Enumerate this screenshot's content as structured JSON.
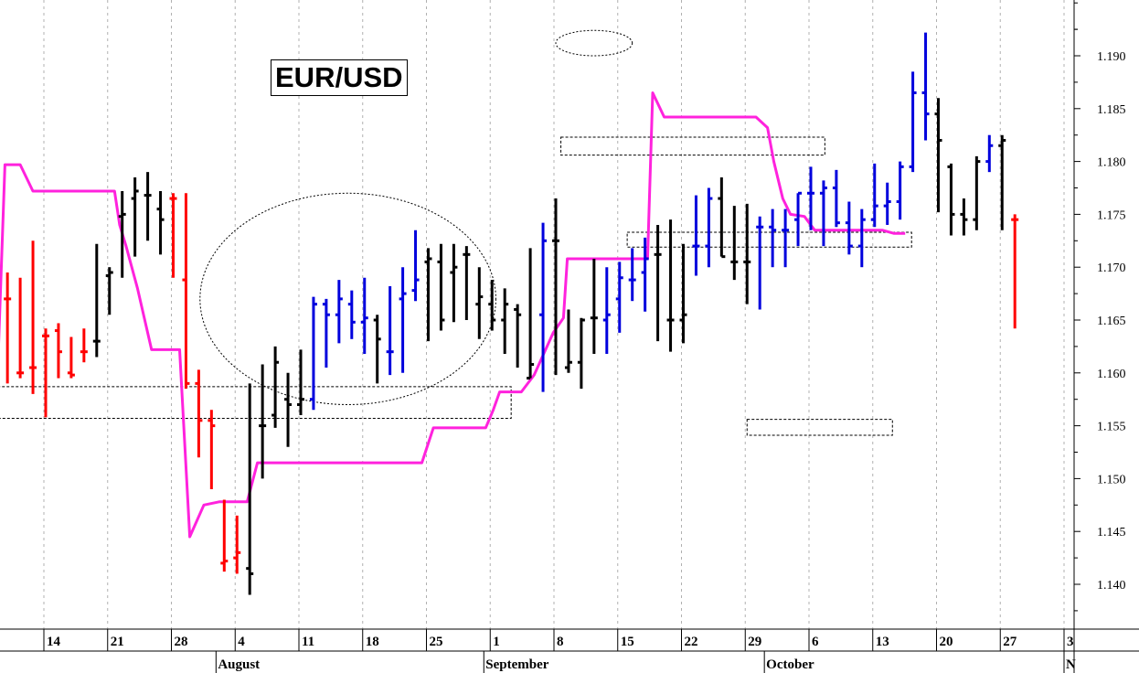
{
  "chart_data": {
    "type": "ohlc",
    "title": "EUR/USD",
    "ylim": [
      1.1345,
      1.1995
    ],
    "y_ticks": [
      "1.140",
      "1.145",
      "1.150",
      "1.155",
      "1.160",
      "1.165",
      "1.170",
      "1.175",
      "1.180",
      "1.185",
      "1.190"
    ],
    "y_tick_values": [
      1.14,
      1.145,
      1.15,
      1.155,
      1.16,
      1.165,
      1.17,
      1.175,
      1.18,
      1.185,
      1.19
    ],
    "x_day_labels": [
      "14",
      "21",
      "28",
      "4",
      "11",
      "18",
      "25",
      "1",
      "8",
      "15",
      "22",
      "29",
      "6",
      "13",
      "20",
      "27",
      "3"
    ],
    "x_day_index": [
      8,
      13,
      18,
      23,
      28,
      33,
      38,
      43,
      48,
      53,
      58,
      63,
      68,
      73,
      78,
      83,
      88
    ],
    "month_labels": [
      {
        "label": "August",
        "index": 21.5
      },
      {
        "label": "September",
        "index": 42.5
      },
      {
        "label": "October",
        "index": 64.5
      },
      {
        "label": "N",
        "index": 88
      }
    ],
    "grid": true,
    "bar_colors": {
      "black": "#000000",
      "red": "#ff0000",
      "blue": "#0000dd"
    },
    "bars": [
      {
        "i": 0,
        "o": 1.1725,
        "h": 1.1735,
        "l": 1.169,
        "c": 1.1725,
        "color": "black"
      },
      {
        "i": 1,
        "o": 1.1722,
        "h": 1.173,
        "l": 1.1675,
        "c": 1.1695,
        "color": "black"
      },
      {
        "i": 2,
        "o": 1.1688,
        "h": 1.1752,
        "l": 1.167,
        "c": 1.17,
        "color": "black"
      },
      {
        "i": 3,
        "o": 1.1695,
        "h": 1.1718,
        "l": 1.167,
        "c": 1.1695,
        "color": "black"
      },
      {
        "i": 4,
        "o": 1.1688,
        "h": 1.1715,
        "l": 1.1652,
        "c": 1.1688,
        "color": "black"
      },
      {
        "i": 5,
        "o": 1.167,
        "h": 1.1695,
        "l": 1.159,
        "c": 1.167,
        "color": "red"
      },
      {
        "i": 6,
        "o": 1.16,
        "h": 1.169,
        "l": 1.1595,
        "c": 1.16,
        "color": "red"
      },
      {
        "i": 7,
        "o": 1.1605,
        "h": 1.1725,
        "l": 1.158,
        "c": 1.1605,
        "color": "red"
      },
      {
        "i": 8,
        "o": 1.1635,
        "h": 1.1642,
        "l": 1.1558,
        "c": 1.1635,
        "color": "red"
      },
      {
        "i": 9,
        "o": 1.164,
        "h": 1.1647,
        "l": 1.1595,
        "c": 1.162,
        "color": "red"
      },
      {
        "i": 10,
        "o": 1.16,
        "h": 1.1634,
        "l": 1.1595,
        "c": 1.1598,
        "color": "red"
      },
      {
        "i": 11,
        "o": 1.162,
        "h": 1.1642,
        "l": 1.161,
        "c": 1.162,
        "color": "red"
      },
      {
        "i": 12,
        "o": 1.163,
        "h": 1.1722,
        "l": 1.1615,
        "c": 1.163,
        "color": "black"
      },
      {
        "i": 13,
        "o": 1.1692,
        "h": 1.17,
        "l": 1.1655,
        "c": 1.1695,
        "color": "black"
      },
      {
        "i": 14,
        "o": 1.1748,
        "h": 1.1772,
        "l": 1.169,
        "c": 1.175,
        "color": "black"
      },
      {
        "i": 15,
        "o": 1.1765,
        "h": 1.1785,
        "l": 1.171,
        "c": 1.1772,
        "color": "black"
      },
      {
        "i": 16,
        "o": 1.1768,
        "h": 1.179,
        "l": 1.1725,
        "c": 1.1768,
        "color": "black"
      },
      {
        "i": 17,
        "o": 1.1755,
        "h": 1.1772,
        "l": 1.1712,
        "c": 1.1745,
        "color": "black"
      },
      {
        "i": 18,
        "o": 1.1765,
        "h": 1.177,
        "l": 1.169,
        "c": 1.1765,
        "color": "red"
      },
      {
        "i": 19,
        "o": 1.1688,
        "h": 1.177,
        "l": 1.1585,
        "c": 1.159,
        "color": "red"
      },
      {
        "i": 20,
        "o": 1.159,
        "h": 1.1603,
        "l": 1.152,
        "c": 1.1555,
        "color": "red"
      },
      {
        "i": 21,
        "o": 1.1555,
        "h": 1.1565,
        "l": 1.149,
        "c": 1.155,
        "color": "red"
      },
      {
        "i": 22,
        "o": 1.142,
        "h": 1.148,
        "l": 1.1412,
        "c": 1.1422,
        "color": "red"
      },
      {
        "i": 23,
        "o": 1.1425,
        "h": 1.1465,
        "l": 1.141,
        "c": 1.143,
        "color": "red"
      },
      {
        "i": 24,
        "o": 1.1415,
        "h": 1.159,
        "l": 1.139,
        "c": 1.141,
        "color": "black"
      },
      {
        "i": 25,
        "o": 1.155,
        "h": 1.1608,
        "l": 1.15,
        "c": 1.155,
        "color": "black"
      },
      {
        "i": 26,
        "o": 1.156,
        "h": 1.1625,
        "l": 1.1548,
        "c": 1.161,
        "color": "black"
      },
      {
        "i": 27,
        "o": 1.1575,
        "h": 1.16,
        "l": 1.153,
        "c": 1.157,
        "color": "black"
      },
      {
        "i": 28,
        "o": 1.157,
        "h": 1.1622,
        "l": 1.156,
        "c": 1.1575,
        "color": "black"
      },
      {
        "i": 29,
        "o": 1.1575,
        "h": 1.1672,
        "l": 1.1565,
        "c": 1.1665,
        "color": "blue"
      },
      {
        "i": 30,
        "o": 1.1665,
        "h": 1.167,
        "l": 1.1605,
        "c": 1.1655,
        "color": "blue"
      },
      {
        "i": 31,
        "o": 1.1655,
        "h": 1.1688,
        "l": 1.1628,
        "c": 1.167,
        "color": "blue"
      },
      {
        "i": 32,
        "o": 1.1665,
        "h": 1.1678,
        "l": 1.1632,
        "c": 1.1648,
        "color": "blue"
      },
      {
        "i": 33,
        "o": 1.1648,
        "h": 1.169,
        "l": 1.1618,
        "c": 1.1652,
        "color": "blue"
      },
      {
        "i": 34,
        "o": 1.165,
        "h": 1.1655,
        "l": 1.159,
        "c": 1.1632,
        "color": "black"
      },
      {
        "i": 35,
        "o": 1.162,
        "h": 1.1682,
        "l": 1.1598,
        "c": 1.162,
        "color": "blue"
      },
      {
        "i": 36,
        "o": 1.167,
        "h": 1.17,
        "l": 1.16,
        "c": 1.1675,
        "color": "blue"
      },
      {
        "i": 37,
        "o": 1.1678,
        "h": 1.1735,
        "l": 1.1668,
        "c": 1.1688,
        "color": "blue"
      },
      {
        "i": 38,
        "o": 1.1705,
        "h": 1.1718,
        "l": 1.163,
        "c": 1.1708,
        "color": "black"
      },
      {
        "i": 39,
        "o": 1.1705,
        "h": 1.1722,
        "l": 1.164,
        "c": 1.165,
        "color": "black"
      },
      {
        "i": 40,
        "o": 1.1695,
        "h": 1.1722,
        "l": 1.1648,
        "c": 1.17,
        "color": "black"
      },
      {
        "i": 41,
        "o": 1.1712,
        "h": 1.172,
        "l": 1.165,
        "c": 1.1712,
        "color": "black"
      },
      {
        "i": 42,
        "o": 1.1665,
        "h": 1.17,
        "l": 1.1632,
        "c": 1.1672,
        "color": "black"
      },
      {
        "i": 43,
        "o": 1.1665,
        "h": 1.1688,
        "l": 1.164,
        "c": 1.165,
        "color": "black"
      },
      {
        "i": 44,
        "o": 1.165,
        "h": 1.168,
        "l": 1.1618,
        "c": 1.1665,
        "color": "black"
      },
      {
        "i": 45,
        "o": 1.166,
        "h": 1.1665,
        "l": 1.1605,
        "c": 1.1655,
        "color": "black"
      },
      {
        "i": 46,
        "o": 1.1595,
        "h": 1.1718,
        "l": 1.1595,
        "c": 1.1608,
        "color": "black"
      },
      {
        "i": 47,
        "o": 1.1655,
        "h": 1.1742,
        "l": 1.1582,
        "c": 1.1725,
        "color": "blue"
      },
      {
        "i": 48,
        "o": 1.1725,
        "h": 1.1765,
        "l": 1.1598,
        "c": 1.1725,
        "color": "black"
      },
      {
        "i": 49,
        "o": 1.1605,
        "h": 1.166,
        "l": 1.16,
        "c": 1.161,
        "color": "black"
      },
      {
        "i": 50,
        "o": 1.161,
        "h": 1.1652,
        "l": 1.1585,
        "c": 1.165,
        "color": "black"
      },
      {
        "i": 51,
        "o": 1.1652,
        "h": 1.1708,
        "l": 1.1618,
        "c": 1.1652,
        "color": "black"
      },
      {
        "i": 52,
        "o": 1.165,
        "h": 1.17,
        "l": 1.1618,
        "c": 1.1655,
        "color": "blue"
      },
      {
        "i": 53,
        "o": 1.167,
        "h": 1.1705,
        "l": 1.1638,
        "c": 1.169,
        "color": "blue"
      },
      {
        "i": 54,
        "o": 1.1688,
        "h": 1.1718,
        "l": 1.1668,
        "c": 1.1688,
        "color": "blue"
      },
      {
        "i": 55,
        "o": 1.1695,
        "h": 1.1728,
        "l": 1.1658,
        "c": 1.1708,
        "color": "blue"
      },
      {
        "i": 56,
        "o": 1.1712,
        "h": 1.174,
        "l": 1.163,
        "c": 1.1712,
        "color": "black"
      },
      {
        "i": 57,
        "o": 1.165,
        "h": 1.1745,
        "l": 1.162,
        "c": 1.165,
        "color": "black"
      },
      {
        "i": 58,
        "o": 1.165,
        "h": 1.1722,
        "l": 1.1628,
        "c": 1.1655,
        "color": "black"
      },
      {
        "i": 59,
        "o": 1.172,
        "h": 1.1768,
        "l": 1.1692,
        "c": 1.172,
        "color": "blue"
      },
      {
        "i": 60,
        "o": 1.172,
        "h": 1.1775,
        "l": 1.17,
        "c": 1.1765,
        "color": "blue"
      },
      {
        "i": 61,
        "o": 1.1765,
        "h": 1.1785,
        "l": 1.171,
        "c": 1.171,
        "color": "black"
      },
      {
        "i": 62,
        "o": 1.1705,
        "h": 1.1758,
        "l": 1.1688,
        "c": 1.1705,
        "color": "black"
      },
      {
        "i": 63,
        "o": 1.1705,
        "h": 1.176,
        "l": 1.1665,
        "c": 1.1705,
        "color": "black"
      },
      {
        "i": 64,
        "o": 1.1738,
        "h": 1.1748,
        "l": 1.166,
        "c": 1.1738,
        "color": "blue"
      },
      {
        "i": 65,
        "o": 1.1738,
        "h": 1.1755,
        "l": 1.17,
        "c": 1.1735,
        "color": "blue"
      },
      {
        "i": 66,
        "o": 1.1735,
        "h": 1.1755,
        "l": 1.17,
        "c": 1.1735,
        "color": "blue"
      },
      {
        "i": 67,
        "o": 1.1745,
        "h": 1.177,
        "l": 1.172,
        "c": 1.177,
        "color": "blue"
      },
      {
        "i": 68,
        "o": 1.177,
        "h": 1.1795,
        "l": 1.1735,
        "c": 1.177,
        "color": "blue"
      },
      {
        "i": 69,
        "o": 1.177,
        "h": 1.1782,
        "l": 1.172,
        "c": 1.1775,
        "color": "blue"
      },
      {
        "i": 70,
        "o": 1.1775,
        "h": 1.1792,
        "l": 1.1738,
        "c": 1.1742,
        "color": "blue"
      },
      {
        "i": 71,
        "o": 1.1742,
        "h": 1.1762,
        "l": 1.1712,
        "c": 1.172,
        "color": "blue"
      },
      {
        "i": 72,
        "o": 1.172,
        "h": 1.1755,
        "l": 1.17,
        "c": 1.1745,
        "color": "blue"
      },
      {
        "i": 73,
        "o": 1.1745,
        "h": 1.1798,
        "l": 1.1738,
        "c": 1.1758,
        "color": "blue"
      },
      {
        "i": 74,
        "o": 1.1758,
        "h": 1.178,
        "l": 1.174,
        "c": 1.1762,
        "color": "blue"
      },
      {
        "i": 75,
        "o": 1.1762,
        "h": 1.18,
        "l": 1.1745,
        "c": 1.1795,
        "color": "blue"
      },
      {
        "i": 76,
        "o": 1.1795,
        "h": 1.1885,
        "l": 1.179,
        "c": 1.1865,
        "color": "blue"
      },
      {
        "i": 77,
        "o": 1.1865,
        "h": 1.1922,
        "l": 1.182,
        "c": 1.1845,
        "color": "blue"
      },
      {
        "i": 78,
        "o": 1.1845,
        "h": 1.186,
        "l": 1.1752,
        "c": 1.182,
        "color": "black"
      },
      {
        "i": 79,
        "o": 1.1795,
        "h": 1.1798,
        "l": 1.173,
        "c": 1.175,
        "color": "black"
      },
      {
        "i": 80,
        "o": 1.175,
        "h": 1.1765,
        "l": 1.173,
        "c": 1.1745,
        "color": "black"
      },
      {
        "i": 81,
        "o": 1.1745,
        "h": 1.1805,
        "l": 1.1735,
        "c": 1.18,
        "color": "black"
      },
      {
        "i": 82,
        "o": 1.18,
        "h": 1.1825,
        "l": 1.179,
        "c": 1.1815,
        "color": "blue"
      },
      {
        "i": 83,
        "o": 1.1815,
        "h": 1.1825,
        "l": 1.1735,
        "c": 1.182,
        "color": "black"
      },
      {
        "i": 84,
        "o": 1.1745,
        "h": 1.175,
        "l": 1.1642,
        "c": 1.1745,
        "color": "red"
      }
    ],
    "ma_line_color": "#ff22dd",
    "ma_line": [
      [
        0,
        1.1625
      ],
      [
        4.3,
        1.1625
      ],
      [
        4.8,
        1.1797
      ],
      [
        6.0,
        1.1797
      ],
      [
        7.0,
        1.1772
      ],
      [
        13.4,
        1.1772
      ],
      [
        13.8,
        1.174
      ],
      [
        14.3,
        1.172
      ],
      [
        15.2,
        1.168
      ],
      [
        16.3,
        1.1622
      ],
      [
        18.5,
        1.1622
      ],
      [
        19.3,
        1.1445
      ],
      [
        20.4,
        1.1475
      ],
      [
        21.6,
        1.1478
      ],
      [
        23.8,
        1.1478
      ],
      [
        24.6,
        1.1515
      ],
      [
        37.5,
        1.1515
      ],
      [
        38.4,
        1.1548
      ],
      [
        42.5,
        1.1548
      ],
      [
        43.1,
        1.1565
      ],
      [
        43.6,
        1.1582
      ],
      [
        45.3,
        1.1582
      ],
      [
        46.3,
        1.1598
      ],
      [
        47.8,
        1.1638
      ],
      [
        48.6,
        1.1652
      ],
      [
        48.9,
        1.1708
      ],
      [
        55.2,
        1.1708
      ],
      [
        55.6,
        1.1865
      ],
      [
        56.5,
        1.1842
      ],
      [
        63.7,
        1.1842
      ],
      [
        64.6,
        1.1832
      ],
      [
        65.1,
        1.18
      ],
      [
        65.8,
        1.1765
      ],
      [
        66.4,
        1.175
      ],
      [
        67.5,
        1.1748
      ],
      [
        68.3,
        1.1735
      ],
      [
        73.6,
        1.1735
      ],
      [
        74.5,
        1.1732
      ],
      [
        75.4,
        1.1732
      ]
    ],
    "box_annotations": [
      {
        "x0": 3.5,
        "x1": 44.5,
        "y0": 1.1557,
        "y1": 1.1587
      },
      {
        "x0": 48.4,
        "x1": 69.1,
        "y0": 1.1806,
        "y1": 1.1823
      },
      {
        "x0": 53.6,
        "x1": 75.9,
        "y0": 1.1719,
        "y1": 1.1733
      },
      {
        "x0": 63.0,
        "x1": 74.4,
        "y0": 1.1541,
        "y1": 1.1556
      }
    ],
    "ellipse_annotations": [
      {
        "cx": 31.7,
        "cy": 1.167,
        "rx": 11.6,
        "ry": 0.01
      },
      {
        "cx": 51.0,
        "cy": 1.1912,
        "rx": 3.0,
        "ry": 0.0012
      }
    ]
  }
}
